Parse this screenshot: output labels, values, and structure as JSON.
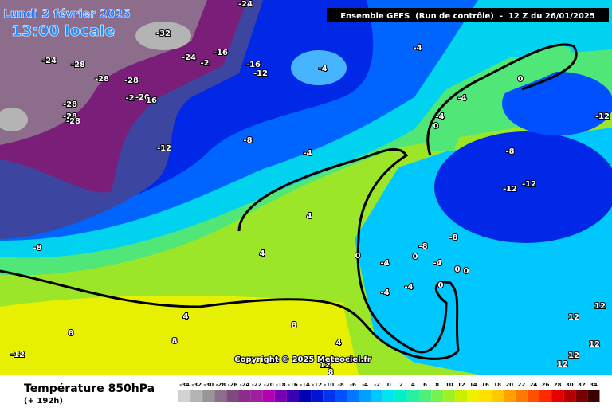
{
  "header": {
    "date": "Lundi 3 février 2025",
    "time": "13:00 locale",
    "run": "Ensemble GEFS  (Run de contrôle)  -  12 Z du 26/01/2025"
  },
  "copyright": "Copyright © 2025 Meteociel.fr",
  "footer": {
    "parameter": "Température 850hPa",
    "lead": "(+ 192h)"
  },
  "map_labels": [
    "-24",
    "-32",
    "-24",
    "-28",
    "-24",
    "-2",
    "-16",
    "-16",
    "-12",
    "-28",
    "-28",
    "-2",
    "-20",
    "16",
    "-28",
    "-28",
    "-28",
    "-12",
    "-8",
    "-4",
    "-4",
    "-4",
    "0",
    "-4",
    "-4",
    "0",
    "-12",
    "-8",
    "-12",
    "-12",
    "-8",
    "-8",
    "-8",
    "4",
    "4",
    "0",
    "-4",
    "0",
    "-4",
    "0",
    "0",
    "0",
    "-4",
    "-4",
    "4",
    "8",
    "8",
    "8",
    "4",
    "-12",
    "12",
    "8",
    "12",
    "12",
    "12",
    "12",
    "12"
  ],
  "legend": {
    "values": [
      -34,
      -32,
      -30,
      -28,
      -26,
      -24,
      -22,
      -20,
      -18,
      -16,
      -14,
      -12,
      -10,
      -8,
      -6,
      -4,
      -2,
      0,
      2,
      4,
      6,
      8,
      10,
      12,
      14,
      16,
      18,
      20,
      22,
      24,
      26,
      28,
      30,
      32,
      34
    ],
    "colors": [
      "#d2d2d2",
      "#b4b4b4",
      "#969696",
      "#8c6e8c",
      "#7d4b7d",
      "#8c2d8c",
      "#a01ea0",
      "#b400b4",
      "#7800b4",
      "#3c00b4",
      "#0000b4",
      "#0014d2",
      "#0032f0",
      "#0050ff",
      "#0078ff",
      "#00a0ff",
      "#00c8ff",
      "#00e6f0",
      "#00f0c8",
      "#28f0a0",
      "#50f078",
      "#78f050",
      "#a0f028",
      "#c8f000",
      "#f0f000",
      "#ffe100",
      "#ffc800",
      "#ffa000",
      "#ff7800",
      "#ff5000",
      "#ff2800",
      "#e60000",
      "#b40000",
      "#780000",
      "#3c0000"
    ]
  }
}
